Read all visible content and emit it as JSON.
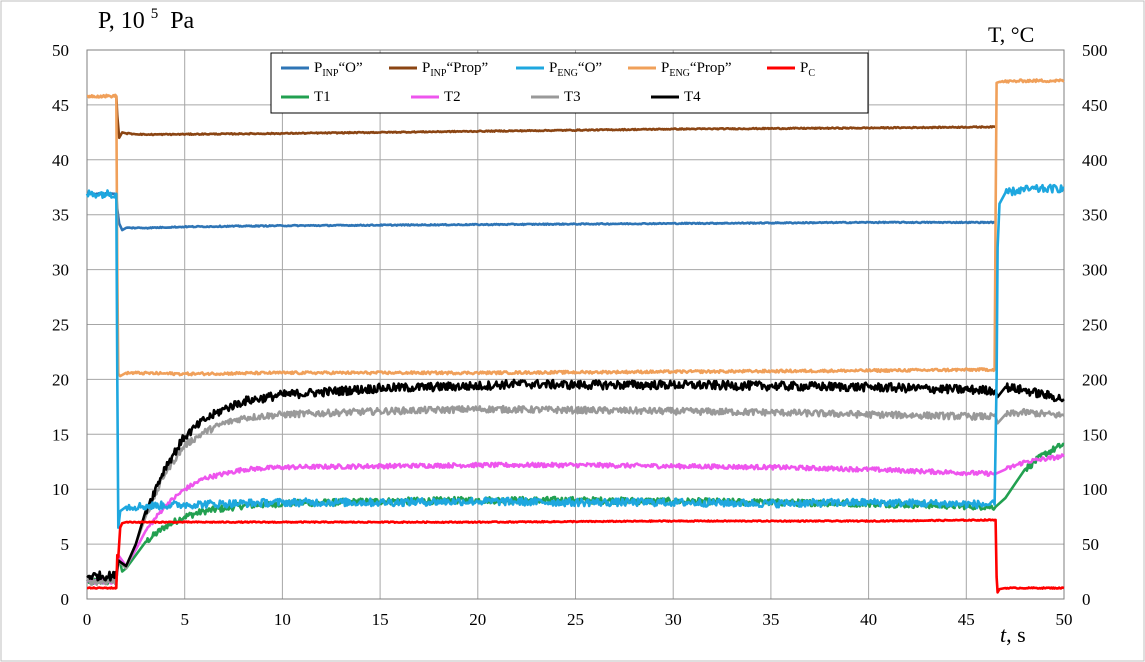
{
  "chart_data": {
    "type": "line",
    "y_left_label": "P, 10",
    "y_left_label_exp": "5",
    "y_left_label_unit": "Pa",
    "y_right_label": "T, °C",
    "x_label_var": "t",
    "x_label_unit": ", s",
    "xlim": [
      0,
      50
    ],
    "ylim_left": [
      0,
      50
    ],
    "ylim_right": [
      0,
      500
    ],
    "x_ticks": [
      "0",
      "5",
      "10",
      "15",
      "20",
      "25",
      "30",
      "35",
      "40",
      "45",
      "50"
    ],
    "y_left_ticks": [
      "0",
      "5",
      "10",
      "15",
      "20",
      "25",
      "30",
      "35",
      "40",
      "45",
      "50"
    ],
    "y_right_ticks": [
      "0",
      "50",
      "100",
      "150",
      "200",
      "250",
      "300",
      "350",
      "400",
      "450",
      "500"
    ],
    "grid": true,
    "legend_position": "top-center",
    "series": [
      {
        "name": "PINP“O”",
        "name_main": "P",
        "name_sub": "INP",
        "name_suffix": "“O”",
        "axis": "left",
        "color": "#2e75b6",
        "noise": 0.05,
        "x": [
          0,
          1.5,
          1.55,
          1.65,
          1.8,
          2.0,
          3,
          5,
          10,
          20,
          30,
          40,
          46.5,
          46.55,
          46.7
        ],
        "y": [
          36.9,
          36.9,
          35.5,
          34.2,
          33.6,
          33.8,
          33.8,
          33.9,
          34.0,
          34.1,
          34.2,
          34.3,
          34.3,
          null,
          null
        ]
      },
      {
        "name": "PINP“Prop”",
        "name_main": "P",
        "name_sub": "INP",
        "name_suffix": "“Prop”",
        "axis": "left",
        "color": "#8b4513",
        "noise": 0.05,
        "x": [
          1.5,
          1.55,
          1.65,
          1.8,
          2.0,
          3,
          10,
          20,
          30,
          40,
          46.5
        ],
        "y": [
          45.8,
          44.0,
          42.0,
          42.5,
          42.4,
          42.3,
          42.4,
          42.6,
          42.8,
          42.9,
          43.0
        ]
      },
      {
        "name": "PENG“O”",
        "name_main": "P",
        "name_sub": "ENG",
        "name_suffix": "“O”",
        "axis": "left",
        "color": "#1ea7df",
        "noise": 0.35,
        "x": [
          0,
          1.5,
          1.55,
          1.6,
          1.7,
          2.0,
          5,
          10,
          15,
          20,
          25,
          30,
          35,
          40,
          46.45,
          46.55,
          46.6,
          46.7,
          47,
          48,
          50
        ],
        "y": [
          36.9,
          36.9,
          20.0,
          6.5,
          8.0,
          8.4,
          8.6,
          8.8,
          8.8,
          8.9,
          8.8,
          8.8,
          8.7,
          8.8,
          8.6,
          20.0,
          32.0,
          36.0,
          37.0,
          37.3,
          37.4
        ]
      },
      {
        "name": "PENG“Prop”",
        "name_main": "P",
        "name_sub": "ENG",
        "name_suffix": "“Prop”",
        "axis": "left",
        "color": "#f0a05a",
        "noise": 0.12,
        "x": [
          0,
          1.5,
          1.55,
          1.6,
          1.7,
          2.0,
          5,
          10,
          20,
          30,
          40,
          46.45,
          46.5,
          46.55,
          46.7,
          48,
          50
        ],
        "y": [
          45.8,
          45.8,
          30.0,
          20.5,
          20.3,
          20.6,
          20.5,
          20.6,
          20.6,
          20.7,
          20.8,
          20.9,
          35.0,
          47.0,
          47.1,
          47.2,
          47.2
        ]
      },
      {
        "name": "PC",
        "name_main": "P",
        "name_sub": "C",
        "name_suffix": "",
        "axis": "left",
        "color": "#ff0000",
        "noise": 0.05,
        "x": [
          0,
          1.5,
          1.55,
          1.6,
          1.7,
          1.8,
          2.0,
          5,
          10,
          20,
          30,
          40,
          46.5,
          46.55,
          46.6,
          46.7,
          47,
          50
        ],
        "y": [
          1.0,
          1.0,
          4.0,
          3.8,
          6.5,
          6.9,
          7.0,
          7.0,
          7.0,
          7.0,
          7.1,
          7.1,
          7.2,
          2.0,
          0.6,
          0.9,
          1.0,
          1.0
        ]
      },
      {
        "name": "T1",
        "name_main": "T1",
        "name_sub": "",
        "name_suffix": "",
        "axis": "right",
        "color": "#22a050",
        "noise": 0.3,
        "x": [
          0,
          1.5,
          1.6,
          1.8,
          2.0,
          2.5,
          3,
          4,
          5,
          6,
          8,
          10,
          15,
          20,
          25,
          30,
          35,
          40,
          46.5,
          47,
          47.5,
          48,
          49,
          50
        ],
        "y": [
          16,
          16,
          40,
          25,
          28,
          40,
          52,
          66,
          75,
          80,
          85,
          87,
          89,
          90,
          90,
          89,
          88,
          87,
          84,
          92,
          105,
          118,
          132,
          141
        ]
      },
      {
        "name": "T2",
        "name_main": "T2",
        "name_sub": "",
        "name_suffix": "",
        "axis": "right",
        "color": "#ee55ee",
        "noise": 0.2,
        "x": [
          0,
          1.5,
          1.6,
          2.0,
          2.5,
          3,
          4,
          5,
          6,
          8,
          10,
          15,
          20,
          25,
          30,
          35,
          40,
          46.5,
          47,
          48,
          50
        ],
        "y": [
          16,
          16,
          40,
          30,
          45,
          62,
          85,
          100,
          110,
          118,
          120,
          121,
          122,
          122,
          121,
          120,
          118,
          114,
          118,
          125,
          130
        ]
      },
      {
        "name": "T3",
        "name_main": "T3",
        "name_sub": "",
        "name_suffix": "",
        "axis": "right",
        "color": "#999999",
        "noise": 0.3,
        "x": [
          0,
          1.5,
          1.6,
          2.0,
          2.5,
          3,
          4,
          5,
          6,
          7,
          8,
          10,
          15,
          20,
          25,
          30,
          35,
          40,
          46.5,
          46.6,
          47,
          48,
          50
        ],
        "y": [
          16,
          16,
          35,
          28,
          50,
          75,
          115,
          140,
          152,
          160,
          165,
          168,
          171,
          173,
          172,
          171,
          170,
          168,
          166,
          160,
          168,
          170,
          167
        ]
      },
      {
        "name": "T4",
        "name_main": "T4",
        "name_sub": "",
        "name_suffix": "",
        "axis": "right",
        "color": "#000000",
        "noise": 0.4,
        "x": [
          0,
          1.5,
          1.6,
          2.0,
          2.5,
          3,
          4,
          5,
          6,
          7,
          8,
          10,
          15,
          20,
          22,
          25,
          30,
          35,
          40,
          46.5,
          46.6,
          47,
          48,
          50
        ],
        "y": [
          21,
          21,
          35,
          30,
          50,
          80,
          120,
          148,
          163,
          173,
          180,
          186,
          192,
          194,
          196,
          195,
          195,
          194,
          193,
          190,
          184,
          193,
          190,
          182
        ]
      }
    ]
  }
}
